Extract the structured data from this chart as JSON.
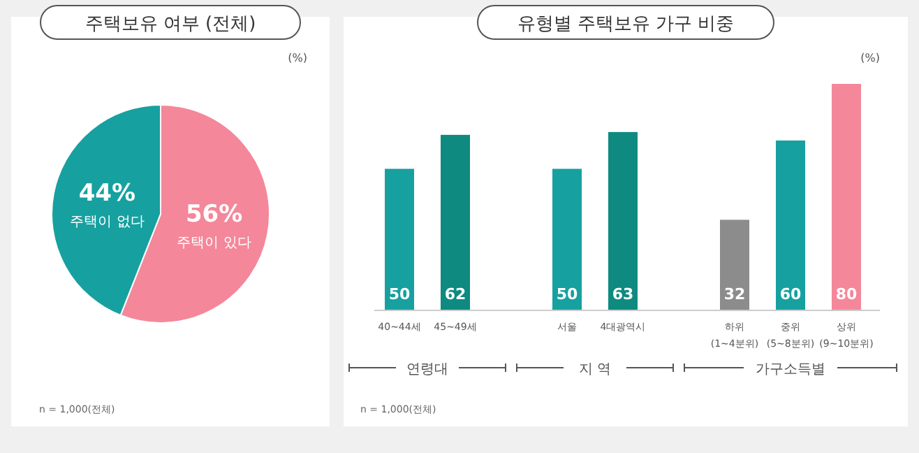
{
  "chart_data": [
    {
      "type": "pie",
      "title": "주택보유 여부 (전체)",
      "categories": [
        "주택이 있다",
        "주택이 없다"
      ],
      "values": [
        56,
        44
      ],
      "colors": [
        "#f4879a",
        "#17a0a0"
      ],
      "value_labels": [
        "56%",
        "44%"
      ],
      "annotations": [
        "(%)",
        "n = 1,000(전체)"
      ]
    },
    {
      "type": "bar",
      "title": "유형별 주택보유 가구 비중",
      "categories": [
        "40~44세",
        "45~49세",
        null,
        "서울",
        "4대광역시",
        null,
        "하위\n(1~4분위)",
        "중위\n(5~8분위)",
        "상위\n(9~10분위)"
      ],
      "values": [
        50,
        62,
        null,
        50,
        63,
        null,
        32,
        60,
        80
      ],
      "colors": [
        "#17a0a0",
        "#0e8a80",
        null,
        "#17a0a0",
        "#0e8a80",
        null,
        "#8c8c8c",
        "#17a0a0",
        "#f4879a"
      ],
      "data_labels": true,
      "annotations": [
        "(%)",
        "연령대",
        "지 역",
        "가구소득별",
        "n = 1,000(전체)"
      ]
    }
  ]
}
